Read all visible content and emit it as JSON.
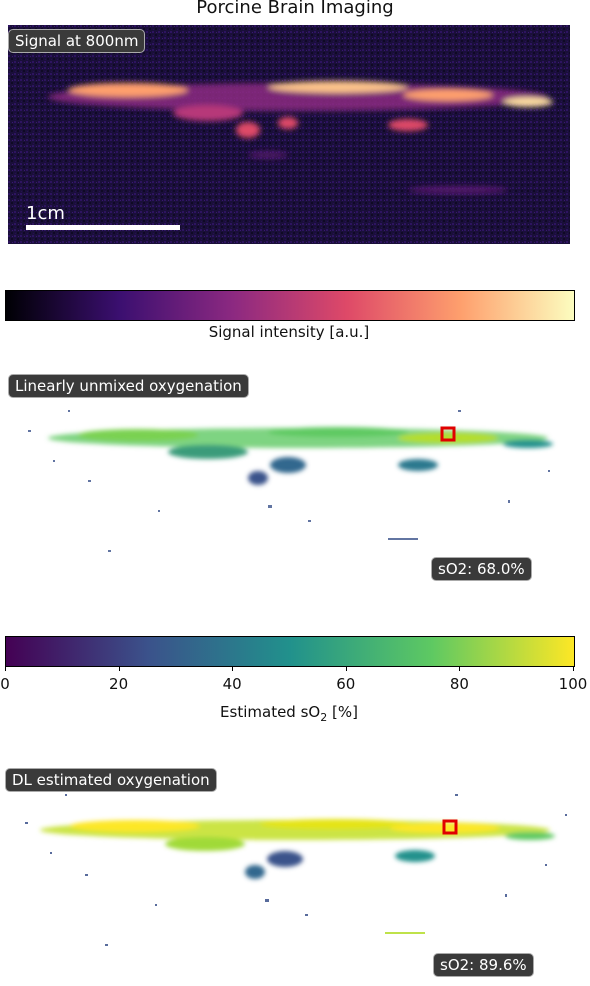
{
  "figure_title": "Porcine Brain Imaging",
  "panels": {
    "signal": {
      "label": "Signal at 800nm",
      "scalebar_label": "1cm"
    },
    "unmixed": {
      "label": "Linearly unmixed oxygenation",
      "so2_readout": "sO2: 68.0%"
    },
    "dl": {
      "label": "DL estimated oxygenation",
      "so2_readout": "sO2: 89.6%"
    }
  },
  "colorbars": {
    "signal": {
      "label": "Signal intensity [a.u.]",
      "colormap": "magma",
      "colors": [
        "#000004",
        "#3b0f70",
        "#8c2981",
        "#de4968",
        "#fe9f6d",
        "#fcfdbf"
      ]
    },
    "so2": {
      "label_main": "Estimated sO",
      "label_sub": "2",
      "label_tail": " [%]",
      "colormap": "viridis",
      "colors": [
        "#440154",
        "#3b528b",
        "#21918c",
        "#5ec962",
        "#fde725"
      ],
      "ticks": [
        "0",
        "20",
        "40",
        "60",
        "80",
        "100"
      ]
    }
  },
  "chart_data": [
    {
      "type": "heatmap",
      "title": "Signal at 800nm",
      "colormap": "magma",
      "colorbar_label": "Signal intensity [a.u.]",
      "annotation": "1cm"
    },
    {
      "type": "heatmap",
      "title": "Linearly unmixed oxygenation",
      "colormap": "viridis",
      "range": [
        0,
        100
      ],
      "colorbar_label": "Estimated sO2 [%]",
      "roi_value": 68.0,
      "roi_unit": "%"
    },
    {
      "type": "heatmap",
      "title": "DL estimated oxygenation",
      "colormap": "viridis",
      "range": [
        0,
        100
      ],
      "roi_value": 89.6,
      "roi_unit": "%"
    }
  ]
}
